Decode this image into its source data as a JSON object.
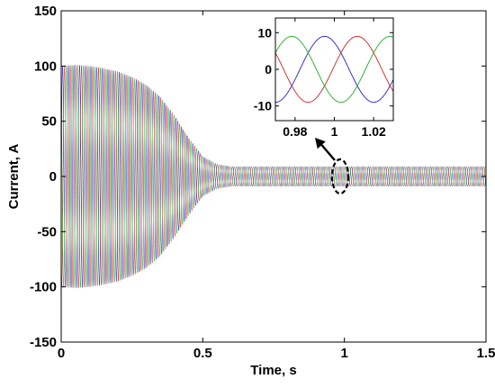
{
  "chart_data": [
    {
      "type": "line",
      "role": "main",
      "title": "",
      "xlabel": "Time, s",
      "ylabel": "Current, A",
      "xlim": [
        0,
        1.5
      ],
      "ylim": [
        -150,
        150
      ],
      "xticks": [
        0,
        0.5,
        1,
        1.5
      ],
      "xtick_labels": [
        "0",
        "0.5",
        "1",
        "1.5"
      ],
      "yticks": [
        -150,
        -100,
        -50,
        0,
        50,
        100,
        150
      ],
      "ytick_labels": [
        "-150",
        "-100",
        "-50",
        "0",
        "50",
        "100",
        "150"
      ],
      "grid": false,
      "legend": "none",
      "frequency_hz": 50,
      "series": [
        {
          "phase_deg": 0,
          "color": "#2222cc"
        },
        {
          "phase_deg": -120,
          "color": "#cc2222"
        },
        {
          "phase_deg": 120,
          "color": "#22aa22"
        }
      ],
      "envelope": {
        "t": [
          0,
          0.05,
          0.1,
          0.15,
          0.2,
          0.25,
          0.3,
          0.35,
          0.4,
          0.45,
          0.5,
          0.55,
          0.6,
          0.7,
          0.8,
          1.0,
          1.5
        ],
        "amplitude": [
          100,
          101,
          100,
          98,
          95,
          90,
          83,
          72,
          55,
          35,
          18,
          11,
          9,
          9,
          9,
          9,
          9
        ]
      },
      "annotations": [
        {
          "type": "ellipse",
          "x": 0.985,
          "y": 0,
          "style": "dashed"
        },
        {
          "type": "arrow",
          "from": [
            0.985,
            0
          ],
          "to": "inset"
        }
      ]
    },
    {
      "type": "line",
      "role": "inset",
      "xlim": [
        0.97,
        1.03
      ],
      "ylim": [
        -14,
        14
      ],
      "xticks": [
        0.98,
        1,
        1.02
      ],
      "xtick_labels": [
        "0.98",
        "1",
        "1.02"
      ],
      "yticks": [
        -10,
        0,
        10
      ],
      "ytick_labels": [
        "-10",
        "0",
        "10"
      ],
      "amplitude": 9,
      "frequency_hz": 20,
      "series": [
        {
          "phase_deg": 270,
          "color": "#2222cc"
        },
        {
          "phase_deg": 150,
          "color": "#cc2222"
        },
        {
          "phase_deg": 30,
          "color": "#22aa22"
        }
      ]
    }
  ]
}
